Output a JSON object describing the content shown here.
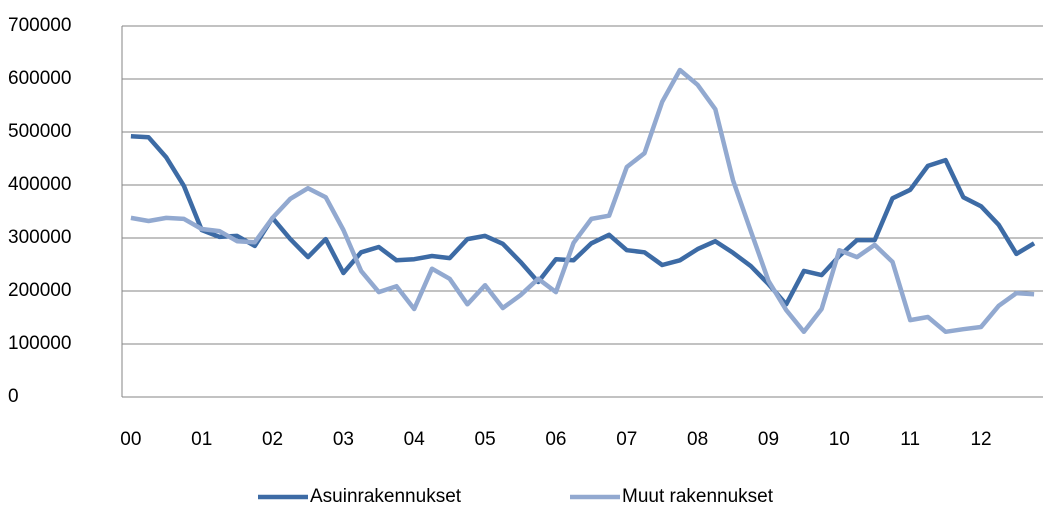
{
  "chart_data": {
    "type": "line",
    "categories": [
      "00",
      null,
      null,
      null,
      "01",
      null,
      null,
      null,
      "02",
      null,
      null,
      null,
      "03",
      null,
      null,
      null,
      "04",
      null,
      null,
      null,
      "05",
      null,
      null,
      null,
      "06",
      null,
      null,
      null,
      "07",
      null,
      null,
      null,
      "08",
      null,
      null,
      null,
      "09",
      null,
      null,
      null,
      "10",
      null,
      null,
      null,
      "11",
      null,
      null,
      null,
      "12",
      null,
      null,
      null
    ],
    "series": [
      {
        "name": "Asuinrakennukset",
        "color": "#3d6ba5",
        "values": [
          492000,
          490000,
          452000,
          398000,
          315000,
          302000,
          304000,
          285000,
          338000,
          298000,
          264000,
          298000,
          234000,
          273000,
          283000,
          258000,
          260000,
          266000,
          262000,
          298000,
          304000,
          289000,
          255000,
          217000,
          260000,
          258000,
          290000,
          306000,
          277000,
          273000,
          249000,
          258000,
          279000,
          294000,
          272000,
          247000,
          213000,
          175000,
          238000,
          230000,
          266000,
          296000,
          296000,
          375000,
          391000,
          436000,
          447000,
          377000,
          360000,
          325000,
          270000,
          290000
        ]
      },
      {
        "name": "Muut rakennukset",
        "color": "#92a9d0",
        "values": [
          338000,
          332000,
          338000,
          336000,
          317000,
          313000,
          294000,
          292000,
          338000,
          374000,
          394000,
          377000,
          315000,
          238000,
          198000,
          209000,
          166000,
          242000,
          223000,
          175000,
          211000,
          168000,
          192000,
          223000,
          198000,
          291000,
          336000,
          342000,
          434000,
          460000,
          557000,
          617000,
          589000,
          543000,
          409000,
          313000,
          219000,
          164000,
          123000,
          166000,
          277000,
          264000,
          287000,
          255000,
          145000,
          151000,
          123000,
          128000,
          132000,
          172000,
          196000,
          194000
        ]
      }
    ],
    "ylim": [
      0,
      700000
    ],
    "yticks": [
      0,
      100000,
      200000,
      300000,
      400000,
      500000,
      600000,
      700000
    ],
    "grid": true,
    "legend": "bottom"
  }
}
